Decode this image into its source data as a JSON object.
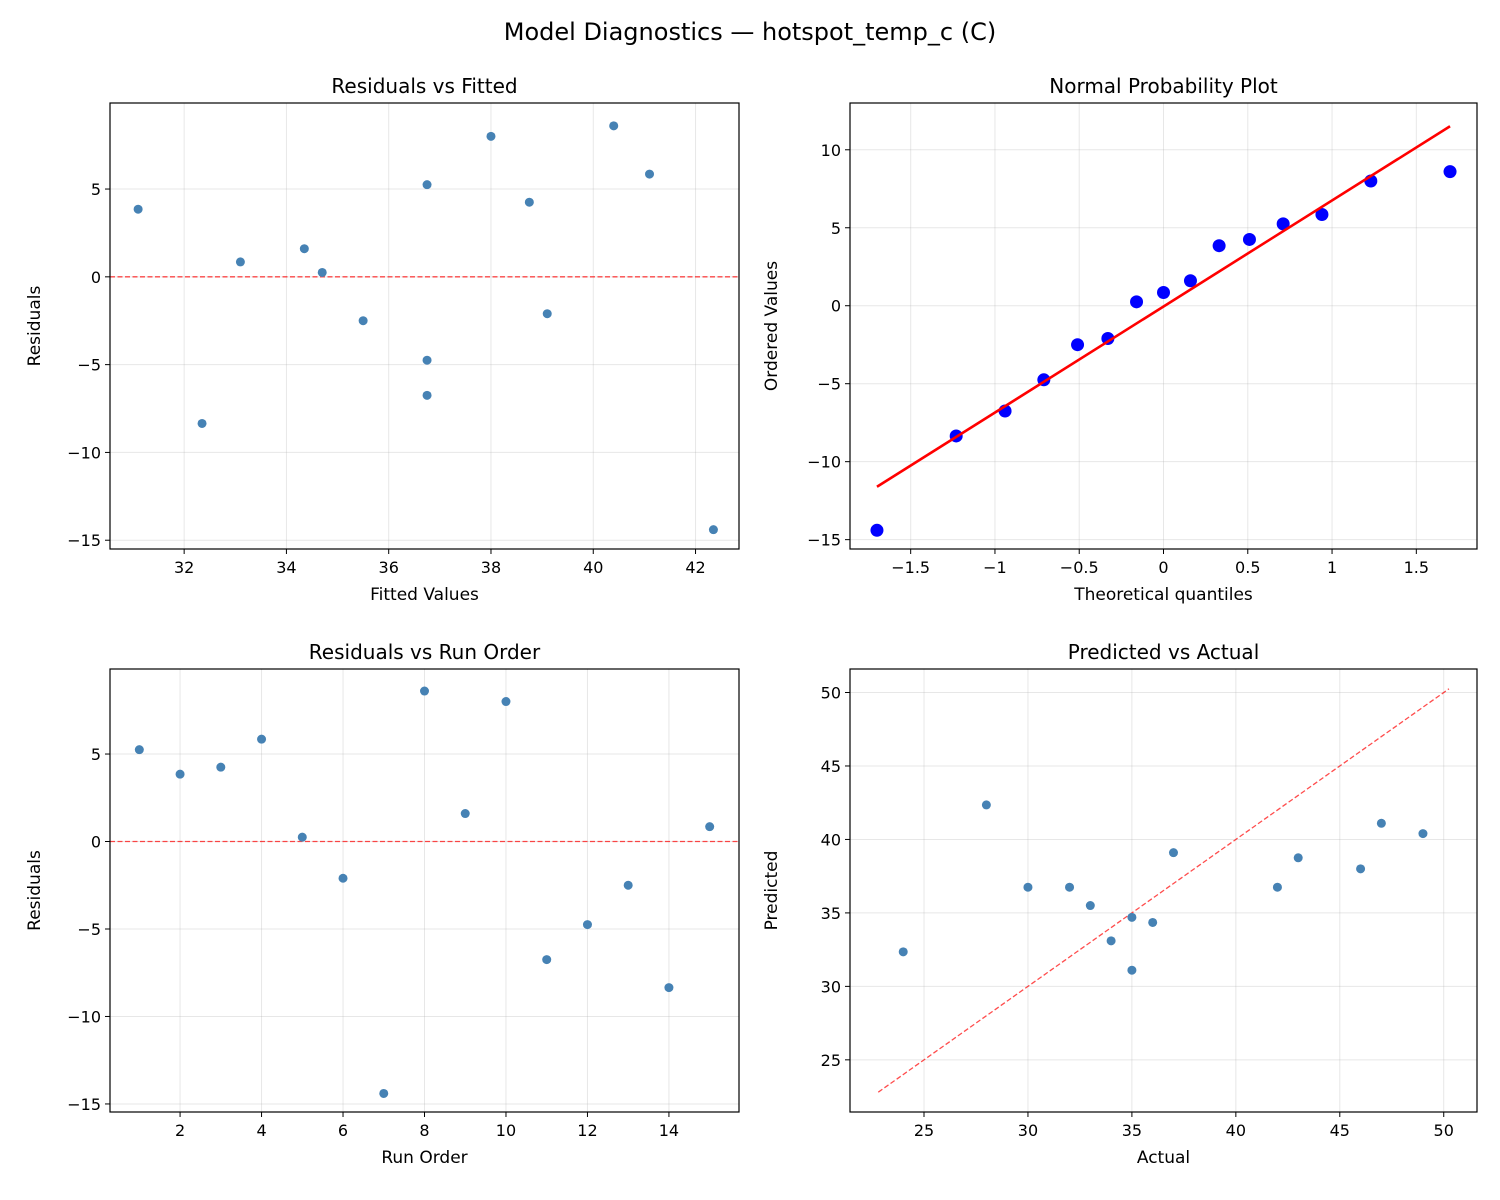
{
  "suptitle": "Model Diagnostics — hotspot_temp_c (C)",
  "chart_data": [
    {
      "type": "scatter",
      "title": "Residuals vs Fitted",
      "xlabel": "Fitted Values",
      "ylabel": "Residuals",
      "xlim": [
        30.55,
        42.85
      ],
      "ylim": [
        -15.5,
        9.9
      ],
      "xticks": [
        32,
        34,
        36,
        38,
        40,
        42
      ],
      "yticks": [
        -15,
        -10,
        -5,
        0,
        5
      ],
      "grid": true,
      "point_color": "#4682b4",
      "x": [
        36.75,
        31.1,
        38.75,
        41.1,
        34.7,
        39.1,
        42.35,
        40.4,
        34.35,
        38.0,
        36.75,
        36.75,
        35.5,
        32.35,
        33.1
      ],
      "y": [
        5.25,
        3.85,
        4.25,
        5.85,
        0.25,
        -2.1,
        -14.4,
        8.6,
        1.6,
        8.0,
        -6.75,
        -4.75,
        -2.5,
        -8.35,
        0.85
      ],
      "hline": {
        "y": 0,
        "color": "#ff0000",
        "style": "dashed"
      }
    },
    {
      "type": "scatter",
      "title": "Normal Probability Plot",
      "xlabel": "Theoretical quantiles",
      "ylabel": "Ordered Values",
      "xlim": [
        -1.86,
        1.86
      ],
      "ylim": [
        -15.6,
        13.0
      ],
      "xticks": [
        -1.5,
        -1.0,
        -0.5,
        0.0,
        0.5,
        1.0,
        1.5
      ],
      "yticks": [
        -15,
        -10,
        -5,
        0,
        5,
        10
      ],
      "grid": true,
      "point_color": "#0000ff",
      "x": [
        -1.7,
        -1.23,
        -0.94,
        -0.71,
        -0.51,
        -0.33,
        -0.16,
        0.0,
        0.16,
        0.33,
        0.51,
        0.71,
        0.94,
        1.23,
        1.7
      ],
      "y": [
        -14.4,
        -8.35,
        -6.75,
        -4.75,
        -2.5,
        -2.1,
        0.25,
        0.85,
        1.6,
        3.85,
        4.25,
        5.25,
        5.85,
        8.0,
        8.6
      ],
      "fit_line": {
        "slope": 6.8,
        "intercept": -0.05,
        "x_range": [
          -1.7,
          1.7
        ],
        "color": "#ff0000"
      }
    },
    {
      "type": "scatter",
      "title": "Residuals vs Run Order",
      "xlabel": "Run Order",
      "ylabel": "Residuals",
      "xlim": [
        0.28,
        15.72
      ],
      "ylim": [
        -15.46,
        9.86
      ],
      "xticks": [
        2,
        4,
        6,
        8,
        10,
        12,
        14
      ],
      "yticks": [
        -15,
        -10,
        -5,
        0,
        5
      ],
      "grid": true,
      "point_color": "#4682b4",
      "x": [
        1,
        2,
        3,
        4,
        5,
        6,
        7,
        8,
        9,
        10,
        11,
        12,
        13,
        14,
        15
      ],
      "y": [
        5.25,
        3.85,
        4.25,
        5.85,
        0.25,
        -2.1,
        -14.4,
        8.6,
        1.6,
        8.0,
        -6.75,
        -4.75,
        -2.5,
        -8.35,
        0.85
      ],
      "hline": {
        "y": 0,
        "color": "#ff0000",
        "style": "dashed"
      }
    },
    {
      "type": "scatter",
      "title": "Predicted vs Actual",
      "xlabel": "Actual",
      "ylabel": "Predicted",
      "xlim": [
        21.44,
        51.6
      ],
      "ylim": [
        21.45,
        51.6
      ],
      "xticks": [
        25,
        30,
        35,
        40,
        45,
        50
      ],
      "yticks": [
        25,
        30,
        35,
        40,
        45,
        50
      ],
      "grid": true,
      "point_color": "#4682b4",
      "x": [
        42,
        35,
        43,
        47,
        35,
        37,
        28,
        49,
        36,
        46,
        30,
        32,
        33,
        24,
        34
      ],
      "y": [
        36.75,
        31.1,
        38.75,
        41.1,
        34.7,
        39.1,
        42.35,
        40.4,
        34.35,
        38.0,
        36.75,
        36.75,
        35.5,
        32.35,
        33.1
      ],
      "identity_line": {
        "range": [
          22.8,
          50.25
        ],
        "color": "#ff0000",
        "style": "dashed"
      }
    }
  ]
}
